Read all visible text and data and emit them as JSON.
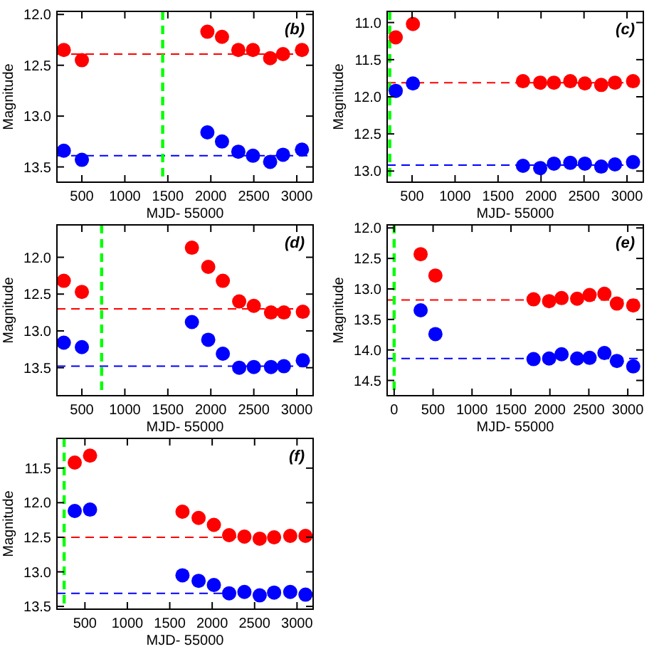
{
  "chart_data": [
    {
      "type": "scatter",
      "xlabel": "MJD- 55000",
      "ylabel": "Magnitude",
      "annotations": [
        "(b)"
      ],
      "marker": "circle",
      "xlim": [
        210,
        3190
      ],
      "ylim": [
        13.65,
        11.97
      ],
      "xticks": [
        500,
        1000,
        1500,
        2000,
        2500,
        3000
      ],
      "yticks": [
        {
          "value": 12,
          "label": "12.0"
        },
        {
          "value": 12.5,
          "label": "12.5"
        },
        {
          "value": 13,
          "label": "13.0"
        },
        {
          "value": 13.5,
          "label": "13.5"
        }
      ],
      "x": [
        290,
        500,
        1960,
        2130,
        2320,
        2490,
        2690,
        2840,
        3060
      ],
      "series": [
        {
          "color": "#ff0000",
          "values": [
            12.35,
            12.45,
            12.17,
            12.22,
            12.35,
            12.35,
            12.43,
            12.39,
            12.35
          ]
        },
        {
          "color": "#0000ff",
          "values": [
            13.34,
            13.43,
            13.16,
            13.25,
            13.35,
            13.39,
            13.45,
            13.38,
            13.33
          ]
        }
      ],
      "ref_lines": [
        {
          "axis": "y",
          "value": 12.39,
          "color": "#ff0000",
          "line_style": "dashed"
        },
        {
          "axis": "y",
          "value": 13.39,
          "color": "#0000ff",
          "line_style": "dashed"
        },
        {
          "axis": "x",
          "value": 1440,
          "color": "#00ff00",
          "line_style": "dashed"
        }
      ]
    },
    {
      "type": "scatter",
      "xlabel": "MJD- 55000",
      "ylabel": "Magnitude",
      "annotations": [
        "(c)"
      ],
      "marker": "circle",
      "xlim": [
        210,
        3190
      ],
      "ylim": [
        13.15,
        10.85
      ],
      "xticks": [
        500,
        1000,
        1500,
        2000,
        2500,
        3000
      ],
      "yticks": [
        {
          "value": 11,
          "label": "11.0"
        },
        {
          "value": 11.5,
          "label": "11.5"
        },
        {
          "value": 12,
          "label": "12.0"
        },
        {
          "value": 12.5,
          "label": "12.5"
        },
        {
          "value": 13,
          "label": "13.0"
        }
      ],
      "x": [
        310,
        510,
        1790,
        1990,
        2150,
        2340,
        2510,
        2700,
        2860,
        3070
      ],
      "series": [
        {
          "color": "#ff0000",
          "values": [
            11.2,
            11.02,
            11.79,
            11.81,
            11.81,
            11.79,
            11.82,
            11.84,
            11.81,
            11.79
          ]
        },
        {
          "color": "#0000ff",
          "values": [
            11.92,
            11.82,
            12.93,
            12.96,
            12.9,
            12.89,
            12.9,
            12.94,
            12.91,
            12.88
          ]
        }
      ],
      "ref_lines": [
        {
          "axis": "y",
          "value": 11.81,
          "color": "#ff0000",
          "line_style": "dashed"
        },
        {
          "axis": "y",
          "value": 12.92,
          "color": "#0000ff",
          "line_style": "dashed"
        },
        {
          "axis": "x",
          "value": 240,
          "color": "#00ff00",
          "line_style": "dashed"
        }
      ]
    },
    {
      "type": "scatter",
      "xlabel": "MJD- 55000",
      "ylabel": "Magnitude",
      "annotations": [
        "(d)"
      ],
      "marker": "circle",
      "xlim": [
        210,
        3190
      ],
      "ylim": [
        13.88,
        11.56
      ],
      "xticks": [
        500,
        1000,
        1500,
        2000,
        2500,
        3000
      ],
      "yticks": [
        {
          "value": 12,
          "label": "12.0"
        },
        {
          "value": 12.5,
          "label": "12.5"
        },
        {
          "value": 13,
          "label": "13.0"
        },
        {
          "value": 13.5,
          "label": "13.5"
        }
      ],
      "x": [
        290,
        500,
        1780,
        1970,
        2140,
        2330,
        2500,
        2700,
        2850,
        3070
      ],
      "series": [
        {
          "color": "#ff0000",
          "values": [
            12.32,
            12.47,
            11.87,
            12.13,
            12.32,
            12.6,
            12.66,
            12.75,
            12.75,
            12.74
          ]
        },
        {
          "color": "#0000ff",
          "values": [
            13.16,
            13.22,
            12.88,
            13.12,
            13.31,
            13.5,
            13.49,
            13.49,
            13.48,
            13.4
          ]
        }
      ],
      "ref_lines": [
        {
          "axis": "y",
          "value": 12.7,
          "color": "#ff0000",
          "line_style": "dashed"
        },
        {
          "axis": "y",
          "value": 13.48,
          "color": "#0000ff",
          "line_style": "dashed"
        },
        {
          "axis": "x",
          "value": 730,
          "color": "#00ff00",
          "line_style": "dashed"
        }
      ]
    },
    {
      "type": "scatter",
      "xlabel": "MJD- 55000",
      "ylabel": "Magnitude",
      "annotations": [
        "(e)"
      ],
      "marker": "circle",
      "xlim": [
        -90,
        3200
      ],
      "ylim": [
        14.75,
        11.95
      ],
      "xticks": [
        0,
        500,
        1000,
        1500,
        2000,
        2500,
        3000
      ],
      "yticks": [
        {
          "value": 12,
          "label": "12.0"
        },
        {
          "value": 12.5,
          "label": "12.5"
        },
        {
          "value": 13,
          "label": "13.0"
        },
        {
          "value": 13.5,
          "label": "13.5"
        },
        {
          "value": 14,
          "label": "14.0"
        },
        {
          "value": 14.5,
          "label": "14.5"
        }
      ],
      "x": [
        340,
        530,
        1790,
        1990,
        2150,
        2350,
        2510,
        2700,
        2860,
        3070
      ],
      "series": [
        {
          "color": "#ff0000",
          "values": [
            12.43,
            12.78,
            13.17,
            13.2,
            13.15,
            13.16,
            13.1,
            13.08,
            13.24,
            13.27
          ]
        },
        {
          "color": "#0000ff",
          "values": [
            13.35,
            13.74,
            14.15,
            14.14,
            14.07,
            14.14,
            14.13,
            14.05,
            14.18,
            14.27
          ]
        }
      ],
      "ref_lines": [
        {
          "axis": "y",
          "value": 13.18,
          "color": "#ff0000",
          "line_style": "dashed"
        },
        {
          "axis": "y",
          "value": 14.14,
          "color": "#0000ff",
          "line_style": "dashed"
        },
        {
          "axis": "x",
          "value": 0,
          "color": "#00ff00",
          "line_style": "dashed"
        }
      ]
    },
    {
      "type": "scatter",
      "xlabel": "MJD- 55000",
      "ylabel": "Magnitude",
      "annotations": [
        "(f)"
      ],
      "marker": "circle",
      "xlim": [
        170,
        3190
      ],
      "ylim": [
        13.54,
        11.07
      ],
      "xticks": [
        500,
        1000,
        1500,
        2000,
        2500,
        3000
      ],
      "yticks": [
        {
          "value": 11.5,
          "label": "11.5"
        },
        {
          "value": 12,
          "label": "12.0"
        },
        {
          "value": 12.5,
          "label": "12.5"
        },
        {
          "value": 13,
          "label": "13.0"
        },
        {
          "value": 13.5,
          "label": "13.5"
        }
      ],
      "x": [
        380,
        560,
        1650,
        1840,
        2020,
        2200,
        2380,
        2560,
        2730,
        2920,
        3100
      ],
      "series": [
        {
          "color": "#ff0000",
          "values": [
            11.42,
            11.32,
            12.13,
            12.22,
            12.32,
            12.47,
            12.49,
            12.52,
            12.5,
            12.48,
            12.48
          ]
        },
        {
          "color": "#0000ff",
          "values": [
            12.12,
            12.1,
            13.05,
            13.13,
            13.19,
            13.31,
            13.29,
            13.34,
            13.3,
            13.29,
            13.33
          ]
        }
      ],
      "ref_lines": [
        {
          "axis": "y",
          "value": 12.5,
          "color": "#ff0000",
          "line_style": "dashed"
        },
        {
          "axis": "y",
          "value": 13.31,
          "color": "#0000ff",
          "line_style": "dashed"
        },
        {
          "axis": "x",
          "value": 255,
          "color": "#00ff00",
          "line_style": "dashed"
        }
      ]
    }
  ]
}
